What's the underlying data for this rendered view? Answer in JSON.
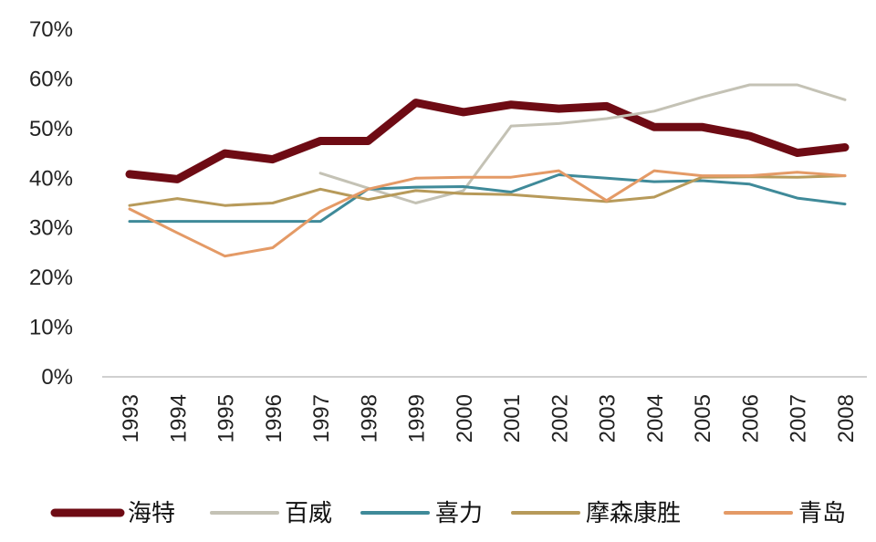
{
  "chart_data": {
    "type": "line",
    "title": "",
    "xlabel": "",
    "ylabel": "",
    "x": [
      "1993",
      "1994",
      "1995",
      "1996",
      "1997",
      "1998",
      "1999",
      "2000",
      "2001",
      "2002",
      "2003",
      "2004",
      "2005",
      "2006",
      "2007",
      "2008"
    ],
    "ylim": [
      0,
      70
    ],
    "yticks": [
      0,
      10,
      20,
      30,
      40,
      50,
      60,
      70
    ],
    "y_tick_labels": [
      "0%",
      "10%",
      "20%",
      "30%",
      "40%",
      "50%",
      "60%",
      "70%"
    ],
    "grid": false,
    "legend_position": "bottom",
    "series": [
      {
        "name": "海特",
        "color": "#6E0B14",
        "values": [
          40.8,
          39.8,
          45.0,
          43.8,
          47.5,
          47.5,
          55.2,
          53.3,
          54.8,
          54.0,
          54.5,
          50.3,
          50.3,
          48.5,
          45.1,
          46.2
        ]
      },
      {
        "name": "百威",
        "color": "#C4C2B5",
        "values": [
          null,
          null,
          null,
          null,
          41.0,
          38.0,
          35.0,
          37.5,
          50.5,
          51.0,
          52.0,
          53.5,
          56.3,
          58.8,
          58.8,
          55.8
        ]
      },
      {
        "name": "喜力",
        "color": "#3F8A99",
        "values": [
          31.3,
          31.3,
          31.3,
          31.3,
          31.3,
          37.8,
          38.2,
          38.3,
          37.2,
          40.7,
          40.0,
          39.3,
          39.5,
          38.8,
          36.0,
          34.8
        ]
      },
      {
        "name": "摩森康胜",
        "color": "#B79A5A",
        "values": [
          34.5,
          35.9,
          34.5,
          35.0,
          37.8,
          35.7,
          37.5,
          36.9,
          36.7,
          36.0,
          35.3,
          36.2,
          40.2,
          40.3,
          40.2,
          40.5
        ]
      },
      {
        "name": "青岛",
        "color": "#E49A66",
        "values": [
          33.8,
          29.0,
          24.3,
          26.0,
          33.3,
          37.8,
          40.0,
          40.2,
          40.2,
          41.5,
          35.5,
          41.5,
          40.5,
          40.5,
          41.2,
          40.5
        ]
      }
    ]
  }
}
